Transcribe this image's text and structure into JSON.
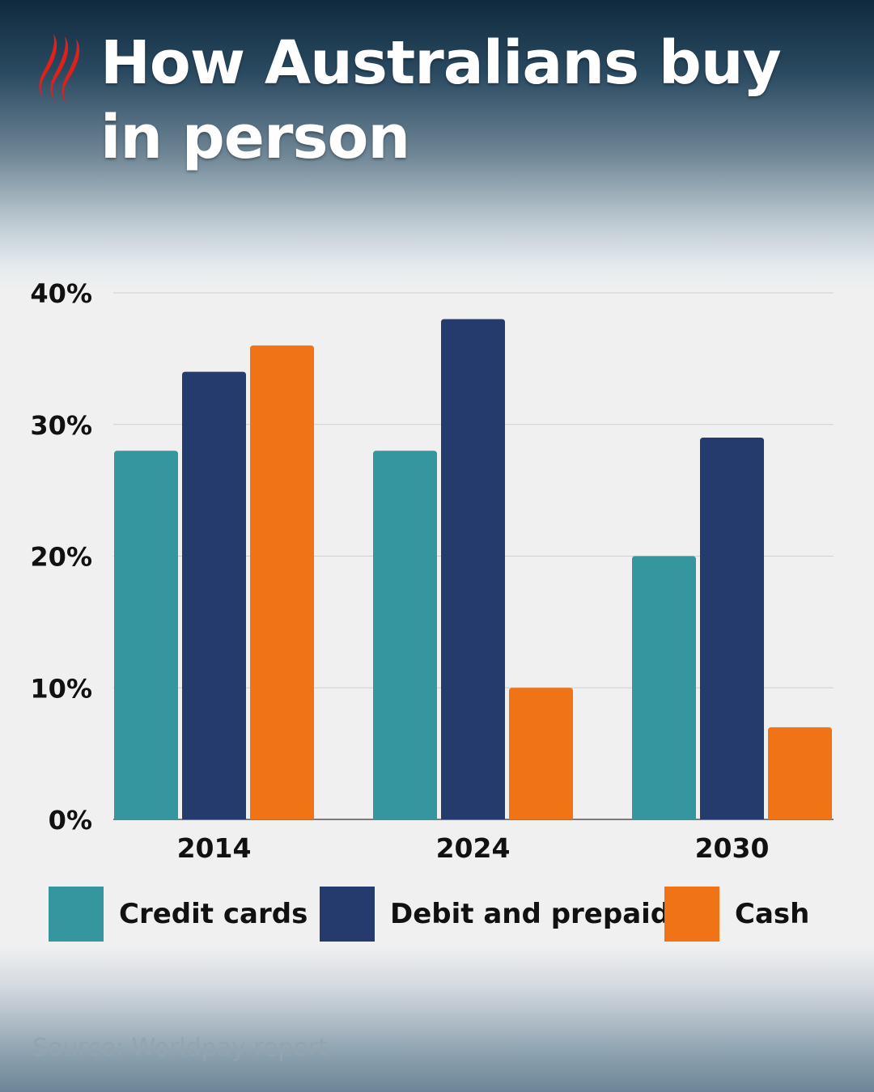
{
  "header": {
    "title": "How Australians buy in person",
    "logo_icon": "sbs-logo-icon",
    "logo_color": "#e0201b"
  },
  "chart_data": {
    "type": "bar",
    "title": "How Australians buy in person",
    "xlabel": "",
    "ylabel": "",
    "categories": [
      "2014",
      "2024",
      "2030"
    ],
    "series": [
      {
        "name": "Credit cards",
        "values": [
          28,
          28,
          20
        ],
        "color": "#3696a0"
      },
      {
        "name": "Debit and prepaid",
        "values": [
          34,
          38,
          29
        ],
        "color": "#253b6e"
      },
      {
        "name": "Cash",
        "values": [
          36,
          10,
          7
        ],
        "color": "#f07415"
      }
    ],
    "ylim": [
      0,
      40
    ],
    "yticks": [
      0,
      10,
      20,
      30,
      40
    ],
    "ytick_labels": [
      "0%",
      "10%",
      "20%",
      "30%",
      "40%"
    ],
    "grid": true,
    "legend_position": "bottom"
  },
  "footer": {
    "source": "Source: Worldpay report"
  }
}
